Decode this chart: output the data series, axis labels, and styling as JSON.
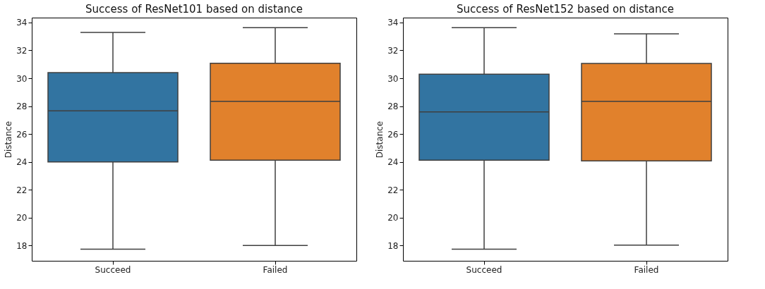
{
  "chart_data": [
    {
      "type": "box",
      "title": "Success of ResNet101 based on distance",
      "ylabel": "Distance",
      "categories": [
        "Succeed",
        "Failed"
      ],
      "colors": [
        "#3274a1",
        "#e1812c"
      ],
      "ylim": [
        16.9,
        34.35
      ],
      "yticks": [
        18,
        20,
        22,
        24,
        26,
        28,
        30,
        32,
        34
      ],
      "boxes": [
        {
          "low": 17.73,
          "q1": 24.0,
          "median": 27.66,
          "q3": 30.4,
          "high": 33.29
        },
        {
          "low": 18.0,
          "q1": 24.12,
          "median": 28.34,
          "q3": 31.07,
          "high": 33.63
        }
      ]
    },
    {
      "type": "box",
      "title": "Success of ResNet152 based on distance",
      "ylabel": "Distance",
      "categories": [
        "Succeed",
        "Failed"
      ],
      "colors": [
        "#3274a1",
        "#e1812c"
      ],
      "ylim": [
        16.9,
        34.35
      ],
      "yticks": [
        18,
        20,
        22,
        24,
        26,
        28,
        30,
        32,
        34
      ],
      "boxes": [
        {
          "low": 17.73,
          "q1": 24.12,
          "median": 27.58,
          "q3": 30.29,
          "high": 33.63
        },
        {
          "low": 18.02,
          "q1": 24.07,
          "median": 28.34,
          "q3": 31.06,
          "high": 33.19
        }
      ]
    }
  ]
}
